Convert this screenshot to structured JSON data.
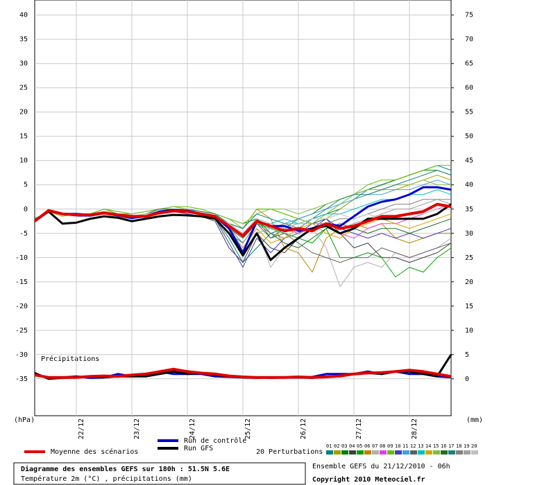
{
  "chart_data": {
    "type": "line",
    "title": "Diagramme des ensembles GEFS sur 180h : 51.5N 5.6E",
    "subtitle": "Température 2m (°C) , précipitations (mm)",
    "run_info": "Ensemble GEFS du 21/12/2010 - 06h",
    "copyright": "Copyright 2010 Meteociel.fr",
    "y_label": "(hPa)",
    "y2_label": "(mm)",
    "precip_label": "Précipitations",
    "perturbations_label": "20 Perturbations",
    "xlim": [
      0,
      180
    ],
    "xticks": [
      {
        "value": 18,
        "label": "22/12"
      },
      {
        "value": 42,
        "label": "23/12"
      },
      {
        "value": 66,
        "label": "24/12"
      },
      {
        "value": 90,
        "label": "25/12"
      },
      {
        "value": 114,
        "label": "26/12"
      },
      {
        "value": 138,
        "label": "27/12"
      },
      {
        "value": 162,
        "label": "28/12"
      }
    ],
    "ylim": [
      -42.6,
      43.1
    ],
    "yticks": [
      40,
      35,
      30,
      25,
      20,
      15,
      10,
      5,
      0,
      -5,
      -10,
      -15,
      -20,
      -25,
      -30,
      -35
    ],
    "y2lim": [
      -7.6,
      78.1
    ],
    "y2ticks": [
      75,
      70,
      65,
      60,
      55,
      50,
      45,
      40,
      35,
      30,
      25,
      20,
      15,
      10,
      5,
      0
    ],
    "grid": true,
    "x": [
      0,
      6,
      12,
      18,
      24,
      30,
      36,
      42,
      48,
      54,
      60,
      66,
      72,
      78,
      84,
      90,
      96,
      102,
      108,
      114,
      120,
      126,
      132,
      138,
      144,
      150,
      156,
      162,
      168,
      174,
      180
    ],
    "series": [
      {
        "name": "Moyenne des scénarios",
        "color": "#e00000",
        "width": 4,
        "values": [
          -2.5,
          -0.3,
          -1,
          -1.2,
          -1.2,
          -0.8,
          -1.2,
          -1.5,
          -1.5,
          -0.8,
          -0.4,
          -0.5,
          -1,
          -1.5,
          -3.5,
          -5.5,
          -2.5,
          -3.5,
          -4.5,
          -4,
          -4.5,
          -3,
          -4,
          -3.5,
          -2.5,
          -1.5,
          -1.5,
          -1,
          -0.5,
          1,
          0.5
        ]
      },
      {
        "name": "Run de contrôle",
        "color": "#0000d0",
        "width": 3,
        "values": [
          -2.5,
          -0.3,
          -1,
          -1,
          -1.2,
          -0.8,
          -1.2,
          -1.8,
          -1.5,
          -0.5,
          -0.2,
          -0.3,
          -1,
          -1.5,
          -4,
          -9,
          -2.5,
          -3.5,
          -3.5,
          -4.5,
          -4,
          -3,
          -3.5,
          -1.5,
          0.5,
          1.5,
          2,
          3,
          4.5,
          4.5,
          4
        ]
      },
      {
        "name": "Run GFS",
        "color": "#000000",
        "width": 3,
        "values": [
          -2.5,
          -0.5,
          -3,
          -2.8,
          -2,
          -1.5,
          -1.8,
          -2.5,
          -2,
          -1.5,
          -1.2,
          -1.3,
          -1.5,
          -2,
          -5,
          -9.5,
          -5,
          -10.5,
          -8,
          -6,
          -4,
          -3.5,
          -5,
          -4,
          -2,
          -2,
          -2,
          -2,
          -2,
          -1,
          1
        ]
      },
      {
        "name": "Moyenne des scénarios",
        "color": "#e00000",
        "width": 4,
        "axis": "y2",
        "values": [
          0.8,
          0.3,
          0.3,
          0.3,
          0.5,
          0.6,
          0.5,
          0.8,
          1,
          1.5,
          2,
          1.5,
          1.2,
          1,
          0.6,
          0.4,
          0.3,
          0.3,
          0.3,
          0.4,
          0.3,
          0.4,
          0.6,
          1,
          1.2,
          1.3,
          1.5,
          1.8,
          1.5,
          1,
          0.5
        ]
      },
      {
        "name": "Run de contrôle",
        "color": "#0000d0",
        "width": 3,
        "axis": "y2",
        "values": [
          1,
          0.2,
          0.3,
          0.5,
          0.2,
          0.3,
          1,
          0.5,
          0.8,
          1.5,
          1,
          1,
          1,
          0.5,
          0.4,
          0.3,
          0.3,
          0.2,
          0.3,
          0.3,
          0.4,
          1,
          1,
          1,
          1.5,
          1,
          1.5,
          1,
          1,
          0.5,
          0.3
        ]
      },
      {
        "name": "Run GFS",
        "color": "#000000",
        "width": 3,
        "axis": "y2",
        "values": [
          1.2,
          0,
          0.2,
          0.3,
          0.5,
          0.3,
          0.5,
          0.5,
          0.5,
          1,
          1.5,
          1,
          1.2,
          0.8,
          0.5,
          0.3,
          0.2,
          0.3,
          0.3,
          0.3,
          0.2,
          0.5,
          0.5,
          1,
          1.2,
          1,
          1.5,
          1.5,
          1,
          0.5,
          5
        ]
      }
    ],
    "perturbations": [
      {
        "name": "01",
        "color": "#008080",
        "values": [
          -2.5,
          -0.5,
          -1,
          -1.5,
          -1,
          -0.5,
          -1,
          -1.5,
          -1,
          -0.5,
          0,
          -0.5,
          -1,
          -2,
          -6,
          -11,
          -8,
          -5,
          -4,
          -3,
          -2,
          -1,
          0,
          2,
          4,
          5,
          6,
          7,
          8,
          9,
          8
        ]
      },
      {
        "name": "02",
        "color": "#a0a000",
        "values": [
          -2.5,
          -0.5,
          -1.5,
          -1,
          -1,
          0,
          -1,
          -1,
          -0.5,
          0,
          0.5,
          0,
          -0.5,
          -1,
          -3,
          -4,
          0,
          0,
          -1,
          -2,
          -3,
          -2,
          0,
          2,
          3,
          4,
          4,
          5,
          6,
          7,
          6
        ]
      },
      {
        "name": "03",
        "color": "#008000",
        "values": [
          -2,
          -0.5,
          -1,
          -1,
          -1,
          0,
          -0.5,
          -1,
          -0.5,
          0,
          0,
          0,
          -0.5,
          -1,
          -2,
          -3,
          -2,
          -6,
          -4,
          -2,
          -1,
          1,
          2,
          3,
          4,
          5,
          6,
          7,
          8,
          8,
          7
        ]
      },
      {
        "name": "04",
        "color": "#404040",
        "values": [
          -2.5,
          -0.5,
          -1,
          -1,
          -1.5,
          -1,
          -1.5,
          -2,
          -1.5,
          -1,
          -0.5,
          -1,
          -1.5,
          -2.5,
          -8,
          -11,
          -5,
          -8,
          -9,
          -6,
          -4,
          -2,
          -5,
          -8,
          -7,
          -10,
          -10,
          -11,
          -10,
          -9,
          -7
        ]
      },
      {
        "name": "05",
        "color": "#00a000",
        "values": [
          -2.5,
          -0.5,
          -1,
          -1,
          -1.5,
          -1,
          -1,
          -1.5,
          -1,
          -0.5,
          0,
          0,
          -1,
          -2,
          -5,
          -7,
          -3,
          -4,
          -5,
          -6,
          -7,
          -4,
          -10,
          -10,
          -9,
          -10,
          -14,
          -12,
          -13,
          -10,
          -8
        ]
      },
      {
        "name": "06",
        "color": "#c08000",
        "values": [
          -2.5,
          -0.5,
          -1,
          -1.5,
          -1,
          -0.5,
          -1,
          -1.5,
          -1,
          -0.5,
          0,
          0,
          -1,
          -1.5,
          -3,
          -4,
          0,
          -2,
          -8,
          -9,
          -13,
          -6,
          -4,
          -3,
          -4,
          -3,
          -6,
          -7,
          -6,
          -5,
          -5
        ]
      },
      {
        "name": "07",
        "color": "#b0b0b0",
        "values": [
          -2.5,
          -0.5,
          -1,
          -1,
          -1,
          -0.5,
          -1,
          -1.5,
          -1,
          0,
          0.5,
          0,
          -1,
          -1.5,
          -4,
          -8,
          -4,
          -12,
          -8,
          -6,
          -4,
          -8,
          -16,
          -12,
          -11,
          -12,
          -9,
          -10,
          -9,
          -8,
          -6
        ]
      },
      {
        "name": "08",
        "color": "#e040e0",
        "values": [
          -2.5,
          -0.5,
          -1,
          -1.5,
          -1,
          -1,
          -1,
          -1.5,
          -1,
          -0.5,
          -0.5,
          -0.5,
          -1,
          -2,
          -5,
          -9,
          -3,
          -3,
          -4,
          -5,
          -3,
          -3,
          -5,
          -6,
          -4,
          -3,
          -3,
          -2,
          -1,
          0,
          1
        ]
      },
      {
        "name": "09",
        "color": "#60c000",
        "values": [
          -2.5,
          -0.5,
          -1,
          -1,
          -1,
          0,
          -1,
          -1,
          -0.5,
          0,
          0.5,
          0.5,
          0,
          -1,
          -2,
          -4,
          0,
          0,
          -1,
          -2,
          -3,
          -1,
          1,
          3,
          5,
          6,
          6,
          7,
          8,
          9,
          9
        ]
      },
      {
        "name": "10",
        "color": "#4040c0",
        "values": [
          -2.5,
          -0.5,
          -1,
          -1.5,
          -1.5,
          -1,
          -1.5,
          -2,
          -1.5,
          -1,
          -0.5,
          -1,
          -1.5,
          -2,
          -7,
          -12,
          -6,
          -9,
          -6,
          -5,
          -3,
          -2,
          -4,
          -5,
          -6,
          -5,
          -6,
          -5,
          -6,
          -5,
          -4
        ]
      },
      {
        "name": "11",
        "color": "#40a0e0",
        "values": [
          -2.5,
          -0.5,
          -1,
          -1,
          -1,
          -0.5,
          -1,
          -1.5,
          -1,
          -0.5,
          0,
          0,
          -0.5,
          -1,
          -3,
          -5,
          -2,
          -4,
          -3,
          -2,
          -1,
          0,
          1,
          2,
          3,
          3,
          4,
          4,
          5,
          6,
          5
        ]
      },
      {
        "name": "12",
        "color": "#606060",
        "values": [
          -2.5,
          -0.5,
          -1,
          -1,
          -1,
          -0.5,
          -1,
          -1.5,
          -1,
          -0.5,
          0,
          0,
          -1,
          -1.5,
          -4,
          -6,
          -3,
          -6,
          -5,
          -7,
          -9,
          -10,
          -11,
          -10,
          -10,
          -8,
          -9,
          -10,
          -9,
          -8,
          -7
        ]
      },
      {
        "name": "13",
        "color": "#00c0c0",
        "values": [
          -2.5,
          -0.5,
          -1,
          -1,
          -1,
          -0.5,
          -1,
          -1.5,
          -1,
          -0.5,
          0,
          0,
          -1,
          -1.5,
          -3,
          -5,
          -2,
          -3,
          -2,
          -3,
          -2,
          -1,
          -1,
          0,
          1,
          2,
          2,
          3,
          3,
          4,
          3
        ]
      },
      {
        "name": "14",
        "color": "#e0a000",
        "values": [
          -2.5,
          -0.5,
          -1,
          -1.5,
          -1,
          -0.5,
          -1,
          -1.5,
          -1,
          -0.5,
          0,
          0,
          -1,
          -2,
          -5,
          -8,
          -4,
          -7,
          -6,
          -4,
          -3,
          -5,
          -6,
          -4,
          -3,
          -2,
          -3,
          -4,
          -3,
          -2,
          -1
        ]
      },
      {
        "name": "15",
        "color": "#80c040",
        "values": [
          -2.5,
          -0.5,
          -1,
          -1,
          -1,
          0,
          -0.5,
          -1,
          -0.5,
          0,
          0.5,
          0,
          -0.5,
          -1,
          -2,
          -3,
          -1,
          0,
          0,
          -1,
          0,
          1,
          2,
          3,
          4,
          4,
          5,
          5,
          6,
          5,
          5
        ]
      },
      {
        "name": "16",
        "color": "#207020",
        "values": [
          -2.5,
          -0.5,
          -1,
          -1,
          -1,
          -0.5,
          -1,
          -1.5,
          -1,
          0,
          0,
          0,
          -1,
          -1.5,
          -4,
          -6,
          -2,
          -5,
          -7,
          -8,
          -6,
          -4,
          -3,
          -4,
          -5,
          -4,
          -4,
          -5,
          -4,
          -3,
          -2
        ]
      },
      {
        "name": "17",
        "color": "#208080",
        "values": [
          -2.5,
          -0.5,
          -1,
          -1,
          -1,
          -0.5,
          -1,
          -1.5,
          -1,
          -0.5,
          0,
          0,
          -0.5,
          -1,
          -3,
          -4,
          -1,
          -2,
          -3,
          -4,
          -2,
          0,
          2,
          3,
          3,
          4,
          5,
          6,
          7,
          8,
          7
        ]
      },
      {
        "name": "18",
        "color": "#808080",
        "values": [
          -2.5,
          -0.5,
          -1,
          -1,
          -1,
          -0.5,
          -1,
          -1.5,
          -1,
          -0.5,
          0,
          0,
          -1,
          -1.5,
          -4,
          -7,
          -3,
          -5,
          -6,
          -5,
          -4,
          -3,
          -2,
          -2,
          -1,
          0,
          1,
          1,
          2,
          2,
          2
        ]
      },
      {
        "name": "19",
        "color": "#a0a0a0",
        "values": [
          -2.5,
          -0.5,
          -1,
          -1,
          -1,
          -0.5,
          -1,
          -1.5,
          -1,
          -0.5,
          0,
          0,
          -1,
          -2,
          -5,
          -10,
          -5,
          -4,
          -3,
          -3,
          -3,
          -3,
          -4,
          -3,
          -2,
          -1,
          0,
          0,
          1,
          2,
          1
        ]
      },
      {
        "name": "20",
        "color": "#c0c0c0",
        "values": [
          -2.5,
          -0.5,
          -1,
          -1.5,
          -1,
          -0.5,
          -1,
          -1.5,
          -1,
          -0.5,
          0,
          0,
          -1,
          -1.5,
          -3,
          -5,
          -2,
          -3,
          -4,
          -3,
          -2,
          -2,
          -1,
          -2,
          -1,
          -2,
          -2,
          -1,
          -1,
          0,
          0
        ]
      }
    ]
  }
}
